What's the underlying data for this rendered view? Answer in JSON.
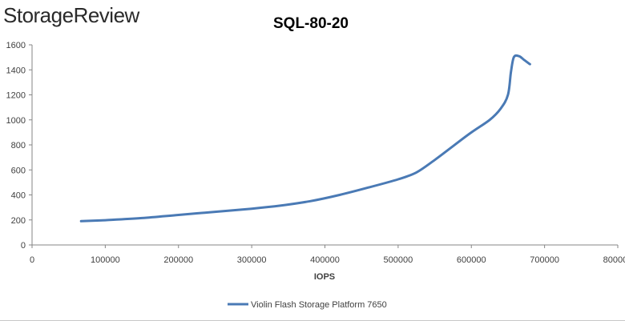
{
  "brand": {
    "logo_text": "StorageReview"
  },
  "chart_data": {
    "type": "line",
    "title": "SQL-80-20",
    "xlabel": "IOPS",
    "ylabel": "",
    "xlim": [
      0,
      800000
    ],
    "ylim": [
      0,
      1600
    ],
    "x_ticks": [
      0,
      100000,
      200000,
      300000,
      400000,
      500000,
      600000,
      700000,
      800000
    ],
    "y_ticks": [
      0,
      200,
      400,
      600,
      800,
      1000,
      1200,
      1400,
      1600
    ],
    "grid": false,
    "legend_position": "bottom",
    "series": [
      {
        "name": "Violin Flash Storage Platform 7650",
        "color": "#4a7ab5",
        "points": [
          [
            67000,
            190
          ],
          [
            100000,
            198
          ],
          [
            150000,
            215
          ],
          [
            200000,
            240
          ],
          [
            250000,
            265
          ],
          [
            300000,
            290
          ],
          [
            340000,
            315
          ],
          [
            380000,
            350
          ],
          [
            420000,
            400
          ],
          [
            460000,
            460
          ],
          [
            500000,
            525
          ],
          [
            525000,
            580
          ],
          [
            550000,
            680
          ],
          [
            575000,
            790
          ],
          [
            600000,
            900
          ],
          [
            625000,
            1000
          ],
          [
            640000,
            1090
          ],
          [
            650000,
            1200
          ],
          [
            654000,
            1380
          ],
          [
            658000,
            1500
          ],
          [
            665000,
            1510
          ],
          [
            672000,
            1480
          ],
          [
            680000,
            1445
          ]
        ]
      }
    ]
  }
}
